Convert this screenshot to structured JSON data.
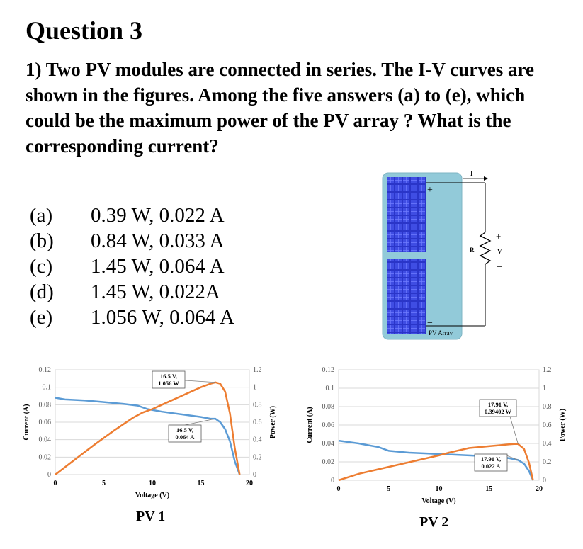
{
  "title": "Question 3",
  "question": "1) Two PV modules are connected in series. The I-V curves are shown in the figures. Among the five answers (a) to (e), which could be the maximum power of the PV array ? What is the corresponding current?",
  "options": [
    {
      "letter": "(a)",
      "text": "0.39 W, 0.022 A"
    },
    {
      "letter": "(b)",
      "text": "0.84 W, 0.033 A"
    },
    {
      "letter": "(c)",
      "text": "1.45 W, 0.064 A"
    },
    {
      "letter": "(d)",
      "text": "1.45 W, 0.022A"
    },
    {
      "letter": "(e)",
      "text": "1.056 W, 0.064 A"
    }
  ],
  "diagram": {
    "current_label": "I",
    "resistor_label": "R",
    "voltage_label": "V",
    "plus_sign": "+",
    "minus_sign": "−",
    "array_label": "PV Array"
  },
  "chart_labels": {
    "pv1": "PV 1",
    "pv2": "PV 2"
  },
  "chart_data": [
    {
      "type": "line",
      "name": "PV 1",
      "xlabel": "Voltage (V)",
      "ylabel": "Current (A)",
      "y2label": "Power (W)",
      "xlim": [
        0,
        20
      ],
      "ylim": [
        0,
        0.12
      ],
      "y2lim": [
        0,
        1.2
      ],
      "xticks": [
        0,
        5,
        10,
        15,
        20
      ],
      "yticks": [
        0,
        0.02,
        0.04,
        0.06,
        0.08,
        0.1,
        0.12
      ],
      "y2ticks": [
        0,
        0.2,
        0.4,
        0.6,
        0.8,
        1,
        1.2
      ],
      "current_color": "#5b9bd5",
      "power_color": "#ed7d31",
      "current": {
        "x": [
          0,
          1,
          3,
          5,
          7,
          8.5,
          9.5,
          11,
          13,
          15,
          16,
          16.5,
          17,
          17.5,
          18,
          18.5,
          19
        ],
        "y": [
          0.088,
          0.086,
          0.085,
          0.083,
          0.081,
          0.079,
          0.075,
          0.072,
          0.069,
          0.066,
          0.064,
          0.064,
          0.06,
          0.052,
          0.038,
          0.015,
          0
        ]
      },
      "power": {
        "x": [
          0,
          2,
          4,
          6,
          8,
          9,
          10,
          11,
          12,
          13,
          14,
          15,
          16,
          16.5,
          17,
          17.5,
          18,
          18.5,
          19
        ],
        "y": [
          0,
          0.17,
          0.34,
          0.5,
          0.65,
          0.71,
          0.75,
          0.8,
          0.85,
          0.9,
          0.95,
          1.0,
          1.04,
          1.056,
          1.04,
          0.95,
          0.7,
          0.3,
          0
        ]
      },
      "annotations": [
        {
          "text": [
            "16.5 V,",
            "1.056 W"
          ],
          "x": 16.5,
          "series": "power",
          "value": 1.056
        },
        {
          "text": [
            "16.5 V,",
            "0.064 A"
          ],
          "x": 16.5,
          "series": "current",
          "value": 0.064
        }
      ]
    },
    {
      "type": "line",
      "name": "PV 2",
      "xlabel": "Voltage (V)",
      "ylabel": "Current (A)",
      "y2label": "Power (W)",
      "xlim": [
        0,
        20
      ],
      "ylim": [
        0,
        0.12
      ],
      "y2lim": [
        0,
        1.2
      ],
      "xticks": [
        0,
        5,
        10,
        15,
        20
      ],
      "yticks": [
        0,
        0.02,
        0.04,
        0.06,
        0.08,
        0.1,
        0.12
      ],
      "y2ticks": [
        0,
        0.2,
        0.4,
        0.6,
        0.8,
        1,
        1.2
      ],
      "current_color": "#5b9bd5",
      "power_color": "#ed7d31",
      "current": {
        "x": [
          0,
          2,
          4,
          5,
          7,
          9,
          11,
          13,
          15,
          16,
          17,
          17.9,
          18.5,
          19,
          19.4
        ],
        "y": [
          0.043,
          0.04,
          0.036,
          0.032,
          0.03,
          0.029,
          0.028,
          0.027,
          0.026,
          0.025,
          0.024,
          0.022,
          0.018,
          0.01,
          0
        ]
      },
      "power": {
        "x": [
          0,
          2,
          4,
          6,
          8,
          10,
          11,
          13,
          15,
          16,
          17,
          17.5,
          17.9,
          18.5,
          19,
          19.4
        ],
        "y": [
          0,
          0.07,
          0.12,
          0.17,
          0.22,
          0.27,
          0.3,
          0.35,
          0.37,
          0.38,
          0.39,
          0.394,
          0.39402,
          0.34,
          0.19,
          0
        ]
      },
      "annotations": [
        {
          "text": [
            "17.91 V,",
            "0.39402 W"
          ],
          "x": 17.91,
          "series": "power",
          "value": 0.39402
        },
        {
          "text": [
            "17.91 V,",
            "0.022 A"
          ],
          "x": 17.91,
          "series": "current",
          "value": 0.022
        }
      ]
    }
  ]
}
